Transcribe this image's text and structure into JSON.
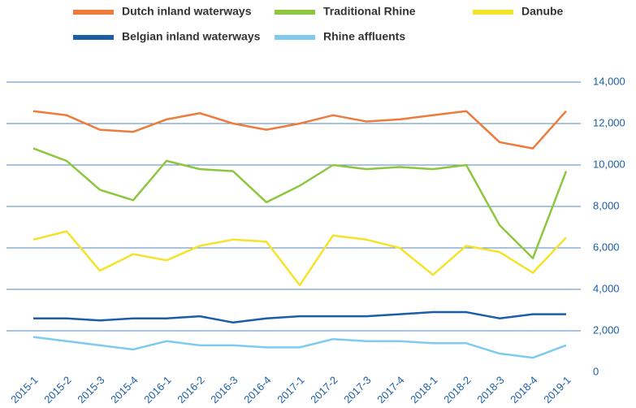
{
  "chart_data": {
    "type": "line",
    "categories": [
      "2015-1",
      "2015-2",
      "2015-3",
      "2015-4",
      "2016-1",
      "2016-2",
      "2016-3",
      "2016-4",
      "2017-1",
      "2017-2",
      "2017-3",
      "2017-4",
      "2018-1",
      "2018-2",
      "2018-3",
      "2018-4",
      "2019-1"
    ],
    "series": [
      {
        "name": "Dutch inland waterways",
        "color": "#ee7a3b",
        "values": [
          12600,
          12400,
          11700,
          11600,
          12200,
          12500,
          12000,
          11700,
          12000,
          12400,
          12100,
          12200,
          12400,
          12600,
          11100,
          10800,
          12600
        ]
      },
      {
        "name": "Traditional Rhine",
        "color": "#8dc63f",
        "values": [
          10800,
          10200,
          8800,
          8300,
          10200,
          9800,
          9700,
          8200,
          9000,
          10000,
          9800,
          9900,
          9800,
          10000,
          7100,
          5500,
          9700
        ]
      },
      {
        "name": "Danube",
        "color": "#f5e22a",
        "values": [
          6400,
          6800,
          4900,
          5700,
          5400,
          6100,
          6400,
          6300,
          4200,
          6600,
          6400,
          6000,
          4700,
          6100,
          5800,
          4800,
          6500
        ]
      },
      {
        "name": "Belgian inland waterways",
        "color": "#1a5ea8",
        "values": [
          2600,
          2600,
          2500,
          2600,
          2600,
          2700,
          2400,
          2600,
          2700,
          2700,
          2700,
          2800,
          2900,
          2900,
          2600,
          2800,
          2800
        ]
      },
      {
        "name": "Rhine affluents",
        "color": "#7ecbef",
        "values": [
          1700,
          1500,
          1300,
          1100,
          1500,
          1300,
          1300,
          1200,
          1200,
          1600,
          1500,
          1500,
          1400,
          1400,
          900,
          700,
          1300
        ]
      }
    ],
    "ylim": [
      0,
      14000
    ],
    "yticks": [
      0,
      {
        "value": 2000,
        "label": "2,000"
      },
      {
        "value": 4000,
        "label": "4,000"
      },
      {
        "value": 6000,
        "label": "6,000"
      },
      {
        "value": 8000,
        "label": "8,000"
      },
      {
        "value": 10000,
        "label": "10,000"
      },
      {
        "value": 12000,
        "label": "12,000"
      },
      {
        "value": 14000,
        "label": "14,000"
      }
    ],
    "grid": true,
    "legend": "top"
  }
}
